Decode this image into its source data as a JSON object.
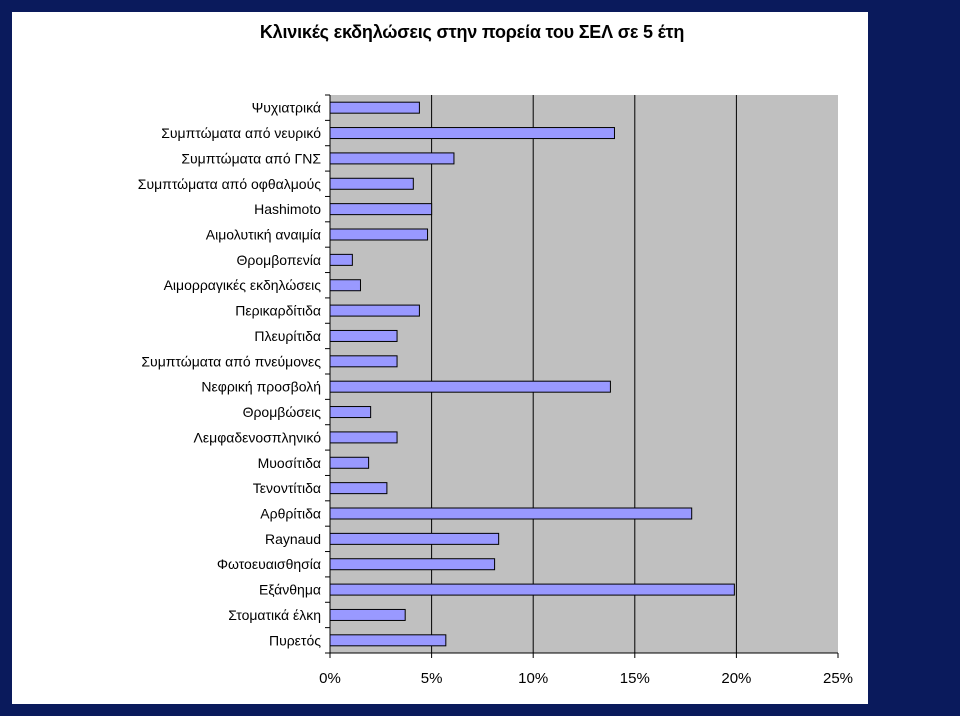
{
  "chart_data": {
    "type": "bar",
    "orientation": "horizontal",
    "title": "Κλινικές εκδηλώσεις στην πορεία του ΣΕΛ σε 5 έτη",
    "xlabel": "",
    "ylabel": "",
    "xlim": [
      0,
      25
    ],
    "xticks": [
      "0%",
      "5%",
      "10%",
      "15%",
      "20%",
      "25%"
    ],
    "grid": "vertical",
    "categories": [
      "Ψυχιατρικά",
      "Συμπτώματα από νευρικό",
      "Συμπτώματα από ΓΝΣ",
      "Συμπτώματα από οφθαλμούς",
      "Hashimoto",
      "Αιμολυτική αναιμία",
      "Θρομβοπενία",
      "Αιμορραγικές εκδηλώσεις",
      "Περικαρδίτιδα",
      "Πλευρίτιδα",
      "Συμπτώματα από πνεύμονες",
      "Νεφρική προσβολή",
      "Θρομβώσεις",
      "Λεμφαδενοσπληνικό",
      "Μυοσίτιδα",
      "Τενοντίτιδα",
      "Αρθρίτιδα",
      "Raynaud",
      "Φωτοευαισθησία",
      "Εξάνθημα",
      "Στοματικά έλκη",
      "Πυρετός"
    ],
    "values": [
      4.4,
      14.0,
      6.1,
      4.1,
      5.0,
      4.8,
      1.1,
      1.5,
      4.4,
      3.3,
      3.3,
      13.8,
      2.0,
      3.3,
      1.9,
      2.8,
      17.8,
      8.3,
      8.1,
      19.9,
      3.7,
      5.7
    ],
    "colors": {
      "bar_fill": "#9999ff",
      "bar_stroke": "#000000",
      "plot_background": "#c0c0c0",
      "page_background": "#0a1a5c"
    }
  }
}
